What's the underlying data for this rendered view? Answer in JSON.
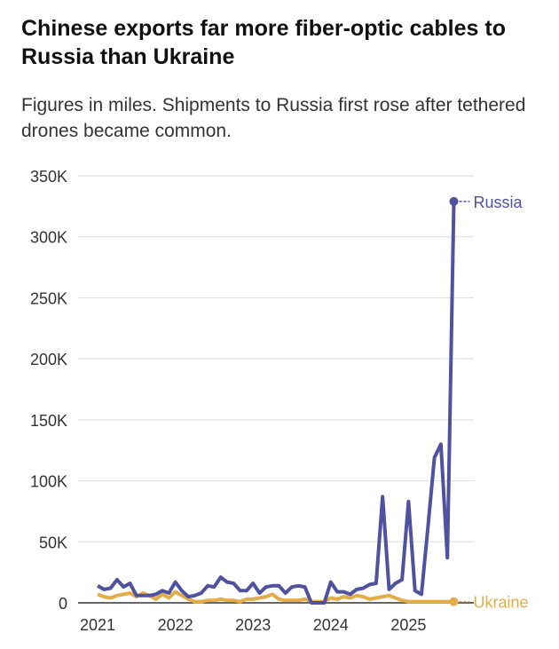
{
  "chart_data": {
    "type": "line",
    "title": "Chinese exports far more fiber-optic cables to Russia than Ukraine",
    "subtitle": "Figures in miles. Shipments to Russia first rose after tethered drones became common.",
    "x_start": "2021-01",
    "x_end": "2025-08",
    "x_frequency": "monthly",
    "x_ticks": [
      "2021",
      "2022",
      "2023",
      "2024",
      "2025"
    ],
    "y_ticks": [
      "0",
      "50K",
      "100K",
      "150K",
      "200K",
      "250K",
      "300K",
      "350K"
    ],
    "ylim": [
      0,
      350000
    ],
    "grid": "horizontal",
    "series": [
      {
        "name": "Russia",
        "color": "#4f529f",
        "values": [
          14000,
          11000,
          12000,
          19000,
          13000,
          16000,
          6000,
          6000,
          6000,
          7000,
          10000,
          8000,
          17000,
          10000,
          5000,
          6000,
          8000,
          14000,
          13000,
          21000,
          17000,
          16000,
          10000,
          10000,
          16000,
          8000,
          13000,
          14000,
          14000,
          8000,
          13000,
          14000,
          13000,
          0,
          0,
          0,
          17000,
          9000,
          9000,
          7000,
          11000,
          12000,
          15000,
          16000,
          87000,
          11000,
          16000,
          19000,
          83000,
          10000,
          7000,
          62000,
          119000,
          130000,
          37000,
          329000
        ]
      },
      {
        "name": "Ukraine",
        "color": "#e3ac48",
        "values": [
          7000,
          5000,
          4000,
          6000,
          7000,
          8000,
          5000,
          8000,
          6000,
          3000,
          7000,
          4000,
          9000,
          6000,
          3000,
          1000,
          1000,
          2000,
          2000,
          3000,
          2000,
          2000,
          1000,
          3000,
          3000,
          4000,
          5000,
          7000,
          3000,
          2000,
          2000,
          2000,
          3000,
          1000,
          1000,
          1000,
          4000,
          3000,
          5000,
          4000,
          6000,
          5000,
          3000,
          4000,
          5000,
          6000,
          4000,
          2000,
          1000,
          1000,
          1000,
          1000,
          1000,
          1000,
          1000,
          1000
        ]
      }
    ]
  }
}
